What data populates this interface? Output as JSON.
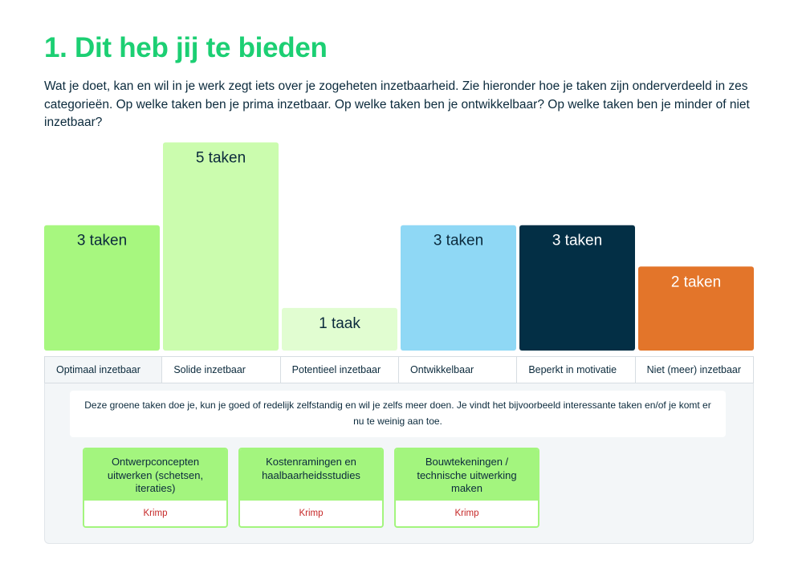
{
  "title": "1. Dit heb jij te bieden",
  "intro": "Wat je doet, kan en wil in je werk zegt iets over je zogeheten inzetbaarheid. Zie hieronder hoe je taken zijn onderverdeeld in zes categorieën. Op welke taken ben je prima inzetbaar. Op welke taken ben je ontwikkelbaar? Op welke taken ben je minder of niet inzetbaar?",
  "chart_data": {
    "type": "bar",
    "categories": [
      "Optimaal inzetbaar",
      "Solide inzetbaar",
      "Potentieel inzetbaar",
      "Ontwikkelbaar",
      "Beperkt in motivatie",
      "Niet (meer) inzetbaar"
    ],
    "values": [
      3,
      5,
      1,
      3,
      3,
      2
    ],
    "labels": [
      "3 taken",
      "5 taken",
      "1 taak",
      "3 taken",
      "3 taken",
      "2 taken"
    ],
    "colors": [
      "#a7f77f",
      "#cbfcae",
      "#e1fdd1",
      "#8fd8f5",
      "#032f45",
      "#e3752a"
    ],
    "label_colors": [
      "#0b2a3c",
      "#0b2a3c",
      "#0b2a3c",
      "#0b2a3c",
      "#ffffff",
      "#ffffff"
    ],
    "ylim": [
      0,
      5
    ]
  },
  "active_tab": 0,
  "panel": {
    "description": "Deze groene taken doe je, kun je goed of redelijk zelfstandig en wil je zelfs meer doen. Je vindt het bijvoorbeeld interessante taken en/of je komt er nu te weinig aan toe.",
    "cards": [
      {
        "title": "Ontwerpconcepten uitwerken (schetsen, iteraties)",
        "status": "Krimp"
      },
      {
        "title": "Kostenramingen en haalbaarheidsstudies",
        "status": "Krimp"
      },
      {
        "title": "Bouwtekeningen / technische uitwerking maken",
        "status": "Krimp"
      }
    ]
  }
}
